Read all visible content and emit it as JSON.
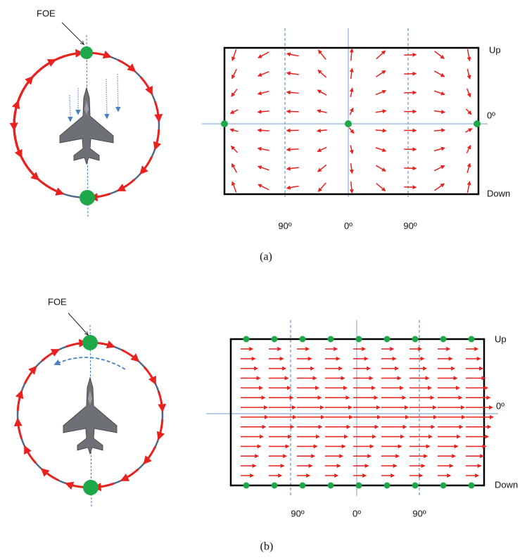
{
  "panels": [
    {
      "foe": "FOE",
      "up": "Up",
      "horizon": "0º",
      "down": "Down",
      "x_labels": [
        "90º",
        "0º",
        "90º"
      ],
      "caption": "(a)"
    },
    {
      "foe": "FOE",
      "up": "Up",
      "horizon": "0º",
      "down": "Down",
      "x_labels": [
        "90º",
        "0º",
        "90º"
      ],
      "caption": "(b)"
    }
  ]
}
